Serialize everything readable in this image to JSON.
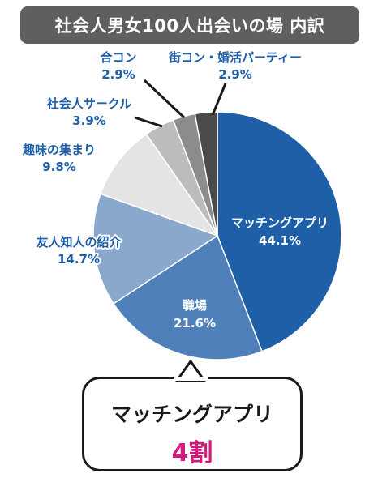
{
  "title": "社会人男女100人出会いの場 内訳",
  "chart_data": {
    "type": "pie",
    "title": "社会人男女100人出会いの場 内訳",
    "slices": [
      {
        "label": "マッチングアプリ",
        "value": 44.1,
        "display": "44.1%",
        "color": "#1e5fa8"
      },
      {
        "label": "職場",
        "value": 21.6,
        "display": "21.6%",
        "color": "#4f80ba"
      },
      {
        "label": "友人知人の紹介",
        "value": 14.7,
        "display": "14.7%",
        "color": "#8aa8cc"
      },
      {
        "label": "趣味の集まり",
        "value": 9.8,
        "display": "9.8%",
        "color": "#e4e4e4"
      },
      {
        "label": "社会人サークル",
        "value": 3.9,
        "display": "3.9%",
        "color": "#bcbcbc"
      },
      {
        "label": "合コン",
        "value": 2.9,
        "display": "2.9%",
        "color": "#8c8c8c"
      },
      {
        "label": "街コン・婚活パーティー",
        "value": 2.9,
        "display": "2.9%",
        "color": "#4a4a4a"
      }
    ]
  },
  "callout": {
    "line1": "マッチングアプリ",
    "line2": "4割"
  }
}
